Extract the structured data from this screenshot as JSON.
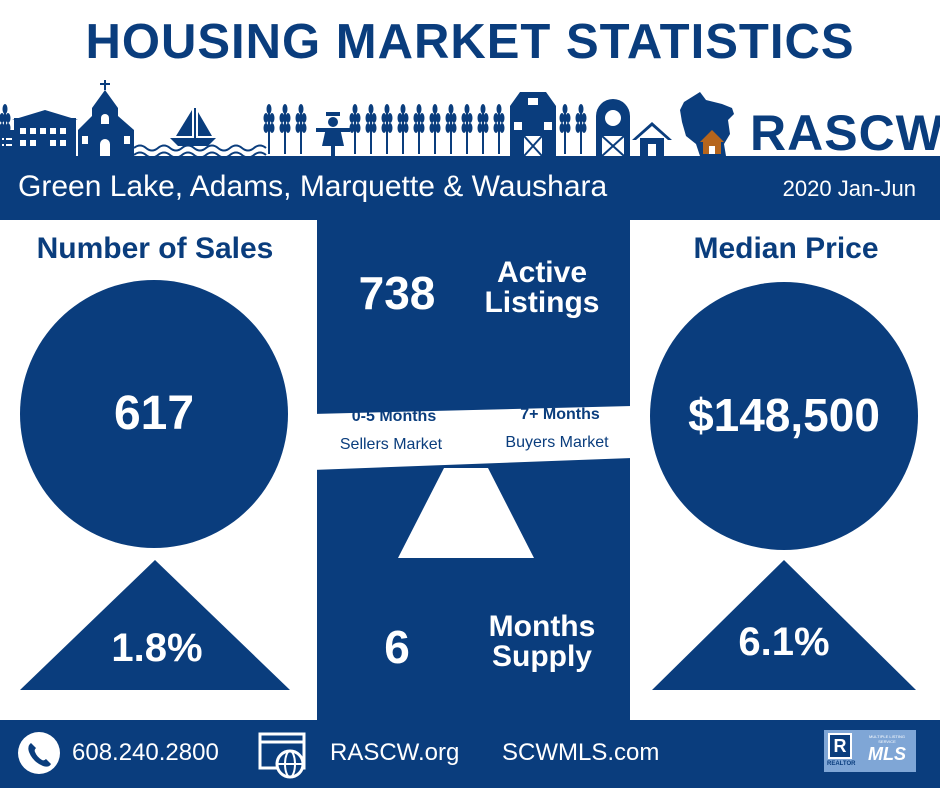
{
  "title": "HOUSING MARKET STATISTICS",
  "brand": {
    "logo_text": "RASCW"
  },
  "banner": {
    "region": "Green Lake, Adams, Marquette & Waushara",
    "period": "2020 Jan-Jun"
  },
  "sales": {
    "heading": "Number of Sales",
    "value": "617",
    "change": "1.8%",
    "change_direction": "up"
  },
  "listings": {
    "value": "738",
    "label_line1": "Active",
    "label_line2": "Listings"
  },
  "scale": {
    "sellers_range": "0-5 Months",
    "sellers_label": "Sellers Market",
    "buyers_range": "7+ Months",
    "buyers_label": "Buyers Market"
  },
  "supply": {
    "value": "6",
    "label_line1": "Months",
    "label_line2": "Supply"
  },
  "price": {
    "heading": "Median Price",
    "value": "$148,500",
    "change": "6.1%",
    "change_direction": "up"
  },
  "footer": {
    "phone": "608.240.2800",
    "site1": "RASCW.org",
    "site2": "SCWMLS.com",
    "realtor_mark": "R",
    "realtor_caption": "REALTOR",
    "mls_text": "MLS",
    "mls_caption": "MULTIPLE LISTING SERVICE"
  },
  "colors": {
    "navy": "#0a3d7d",
    "white": "#ffffff",
    "roof_accent": "#b5651d",
    "badge_blue": "#7fa6d6"
  },
  "icons": [
    "school-icon",
    "church-icon",
    "sailboat-icon",
    "waves-icon",
    "wheat-icon",
    "scarecrow-icon",
    "barn-icon",
    "silo-icon",
    "house-icon",
    "wisconsin-map-icon",
    "phone-icon",
    "web-icon"
  ]
}
